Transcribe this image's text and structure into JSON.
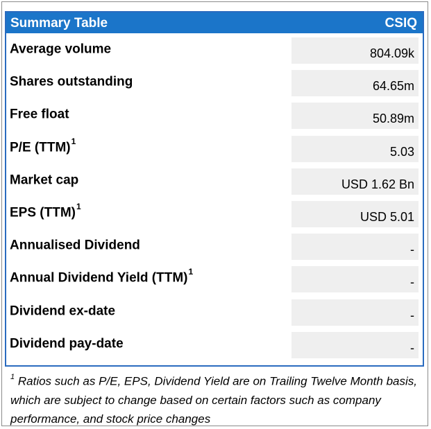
{
  "header": {
    "title": "Summary Table",
    "ticker": "CSIQ"
  },
  "rows": [
    {
      "label": "Average volume",
      "note": "",
      "value": "804.09k"
    },
    {
      "label": "Shares outstanding",
      "note": "",
      "value": "64.65m"
    },
    {
      "label": "Free float",
      "note": "",
      "value": "50.89m"
    },
    {
      "label": "P/E (TTM)",
      "note": "1",
      "value": "5.03"
    },
    {
      "label": "Market cap",
      "note": "",
      "value": "USD 1.62 Bn"
    },
    {
      "label": "EPS (TTM)",
      "note": "1",
      "value": "USD 5.01"
    },
    {
      "label": "Annualised Dividend",
      "note": "",
      "value": "-"
    },
    {
      "label": "Annual Dividend Yield (TTM)",
      "note": "1",
      "value": "-"
    },
    {
      "label": "Dividend ex-date",
      "note": "",
      "value": "-"
    },
    {
      "label": "Dividend pay-date",
      "note": "",
      "value": "-"
    }
  ],
  "footnote": {
    "marker": "1",
    "text": "Ratios such as P/E, EPS, Dividend Yield are on Trailing Twelve Month basis, which are subject to change based on certain factors such as company performance, and stock price changes"
  },
  "colors": {
    "header_bg": "#1b75c9",
    "border": "#2a6bbf",
    "value_cell_bg": "#efefef"
  }
}
